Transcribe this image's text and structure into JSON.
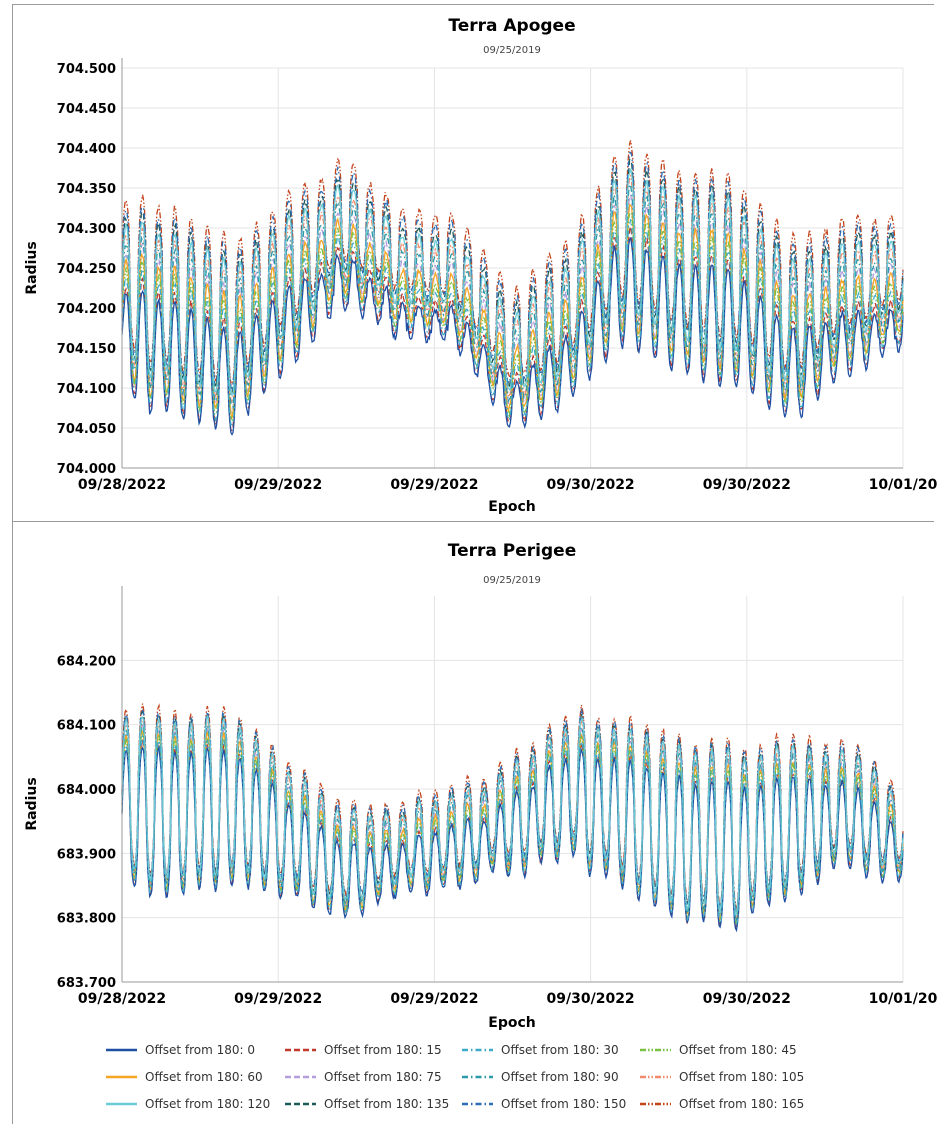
{
  "colors": {
    "grid": "#e4e4e4",
    "axis": "#999999",
    "text": "#000000",
    "subtitle": "#444444",
    "background": "#ffffff"
  },
  "chart_data": [
    {
      "type": "line",
      "title": "Terra Apogee",
      "subtitle": "09/25/2019",
      "xlabel": "Epoch",
      "ylabel": "Radius",
      "ylim": [
        704.0,
        704.5
      ],
      "yticks": [
        "704.000",
        "704.050",
        "704.100",
        "704.150",
        "704.200",
        "704.250",
        "704.300",
        "704.350",
        "704.400",
        "704.450",
        "704.500"
      ],
      "xticks": [
        "09/28/2022",
        "09/29/2022",
        "09/29/2022",
        "09/30/2022",
        "09/30/2022",
        "10/01/20"
      ],
      "grid": true,
      "signal": {
        "baseline": [
          704.2,
          704.18,
          704.15,
          704.22,
          704.28,
          704.23,
          704.22,
          704.12,
          704.17,
          704.27,
          704.23,
          704.22,
          704.16,
          704.2,
          704.22
        ],
        "oscillation_periods": 48,
        "oscillation_amplitude": 0.085,
        "spread_between_series": 0.09
      },
      "series_names": [
        "Offset from 180: 0",
        "Offset from 180: 15",
        "Offset from 180: 30",
        "Offset from 180: 45",
        "Offset from 180: 60",
        "Offset from 180: 75",
        "Offset from 180: 90",
        "Offset from 180: 105",
        "Offset from 180: 120",
        "Offset from 180: 135",
        "Offset from 180: 150",
        "Offset from 180: 165"
      ]
    },
    {
      "type": "line",
      "title": "Terra Perigee",
      "subtitle": "09/25/2019",
      "xlabel": "Epoch",
      "ylabel": "Radius",
      "ylim": [
        683.7,
        684.3
      ],
      "yticks": [
        "683.700",
        "683.800",
        "683.900",
        "684.000",
        "684.100",
        "684.200"
      ],
      "xticks": [
        "09/28/2022",
        "09/29/2022",
        "09/29/2022",
        "09/30/2022",
        "09/30/2022",
        "10/01/20"
      ],
      "grid": true,
      "signal": {
        "baseline": [
          683.98,
          683.97,
          683.98,
          683.93,
          683.88,
          683.9,
          683.92,
          683.95,
          684.0,
          683.97,
          683.93,
          683.92,
          683.95,
          683.97,
          683.92
        ],
        "oscillation_periods": 48,
        "oscillation_amplitude": 0.12,
        "spread_between_series": 0.05
      },
      "series_names": [
        "Offset from 180: 0",
        "Offset from 180: 15",
        "Offset from 180: 30",
        "Offset from 180: 45",
        "Offset from 180: 60",
        "Offset from 180: 75",
        "Offset from 180: 90",
        "Offset from 180: 105",
        "Offset from 180: 120",
        "Offset from 180: 135",
        "Offset from 180: 150",
        "Offset from 180: 165"
      ]
    }
  ],
  "legend": {
    "placement": "bottom",
    "items": [
      {
        "label": "Offset from 180: 0",
        "color": "#1f4fa3",
        "dash": "solid"
      },
      {
        "label": "Offset from 180: 15",
        "color": "#c0392b",
        "dash": "dash"
      },
      {
        "label": "Offset from 180: 30",
        "color": "#3fa9c9",
        "dash": "dashdot"
      },
      {
        "label": "Offset from 180: 45",
        "color": "#7ac143",
        "dash": "dashdotdot"
      },
      {
        "label": "Offset from 180: 60",
        "color": "#f5a623",
        "dash": "solid"
      },
      {
        "label": "Offset from 180: 75",
        "color": "#b39ddb",
        "dash": "dash"
      },
      {
        "label": "Offset from 180: 90",
        "color": "#2c9aa8",
        "dash": "dashdot"
      },
      {
        "label": "Offset from 180: 105",
        "color": "#f08a6c",
        "dash": "dashdotdot"
      },
      {
        "label": "Offset from 180: 120",
        "color": "#6ccad6",
        "dash": "solid"
      },
      {
        "label": "Offset from 180: 135",
        "color": "#1e5a57",
        "dash": "dash"
      },
      {
        "label": "Offset from 180: 150",
        "color": "#2d6db3",
        "dash": "dashdot"
      },
      {
        "label": "Offset from 180: 165",
        "color": "#c4441c",
        "dash": "dashdotdot"
      }
    ]
  }
}
